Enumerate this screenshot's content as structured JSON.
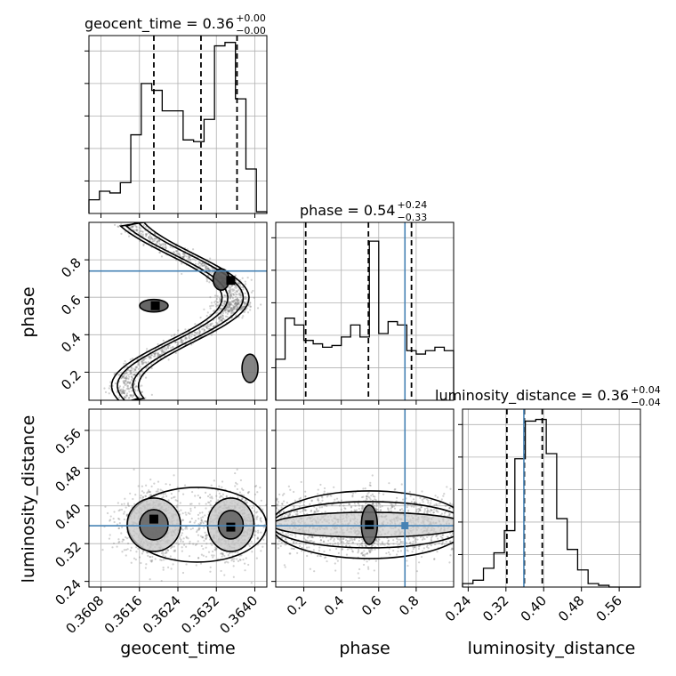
{
  "chart_data": {
    "type": "corner",
    "truth_color": "#4682b4",
    "truths": {
      "phase": 0.74,
      "luminosity_distance": 0.358
    },
    "parameters": [
      {
        "key": "geocent_time",
        "label": "geocent_time",
        "title": {
          "main": "geocent_time = 0.36",
          "plus": "+0.00",
          "minus": "−0.00"
        },
        "range": [
          0.36055,
          0.36425
        ],
        "ticks": [
          0.3608,
          0.3616,
          0.3624,
          0.3632,
          0.364
        ],
        "tick_labels": [
          "0.3608",
          "0.3616",
          "0.3624",
          "0.3632",
          "0.3640"
        ],
        "quantiles": [
          0.3619,
          0.36288,
          0.36363
        ]
      },
      {
        "key": "phase",
        "label": "phase",
        "title": {
          "main": "phase = 0.54",
          "plus": "+0.24",
          "minus": "−0.33"
        },
        "range": [
          0.05,
          1.0
        ],
        "ticks": [
          0.2,
          0.4,
          0.6,
          0.8
        ],
        "tick_labels": [
          "0.2",
          "0.4",
          "0.6",
          "0.8"
        ],
        "quantiles": [
          0.21,
          0.545,
          0.775
        ]
      },
      {
        "key": "luminosity_distance",
        "label": "luminosity_distance",
        "title": {
          "main": "luminosity_distance = 0.36",
          "plus": "+0.04",
          "minus": "−0.04"
        },
        "range": [
          0.228,
          0.605
        ],
        "ticks": [
          0.24,
          0.32,
          0.4,
          0.48,
          0.56
        ],
        "tick_labels": [
          "0.24",
          "0.32",
          "0.40",
          "0.48",
          "0.56"
        ],
        "quantiles": [
          0.322,
          0.359,
          0.397
        ]
      }
    ],
    "histograms": {
      "geocent_time": [
        0.08,
        0.13,
        0.12,
        0.18,
        0.46,
        0.76,
        0.72,
        0.6,
        0.6,
        0.43,
        0.42,
        0.55,
        0.98,
        1.0,
        0.67,
        0.26,
        0.01
      ],
      "phase": [
        0.24,
        0.48,
        0.44,
        0.35,
        0.33,
        0.31,
        0.32,
        0.37,
        0.44,
        0.37,
        0.93,
        0.39,
        0.46,
        0.44,
        0.29,
        0.27,
        0.29,
        0.31,
        0.29
      ],
      "luminosity_distance": [
        0.02,
        0.04,
        0.11,
        0.2,
        0.33,
        0.75,
        0.97,
        0.98,
        0.78,
        0.4,
        0.22,
        0.1,
        0.02,
        0.01,
        0.0,
        0.0,
        0.0
      ]
    },
    "grid": true
  }
}
